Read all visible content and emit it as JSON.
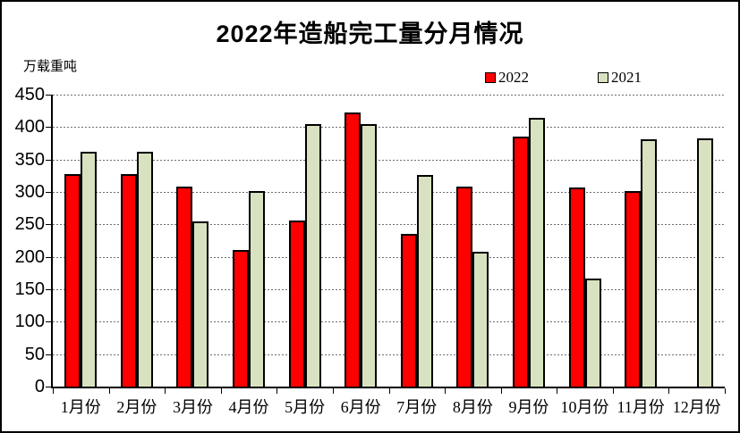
{
  "window": {
    "background": "#ffffff",
    "border_color": "#000000"
  },
  "chart_data": {
    "type": "bar",
    "title": "2022年造船完工量分月情况",
    "ylabel": "万载重吨",
    "xlabel": "",
    "categories": [
      "1月份",
      "2月份",
      "3月份",
      "4月份",
      "5月份",
      "6月份",
      "7月份",
      "8月份",
      "9月份",
      "10月份",
      "11月份",
      "12月份"
    ],
    "series": [
      {
        "name": "2022",
        "color": "#fe0000",
        "values": [
          327,
          327,
          308,
          210,
          256,
          422,
          235,
          308,
          386,
          307,
          302,
          null
        ]
      },
      {
        "name": "2021",
        "color": "#d8e2c0",
        "values": [
          362,
          362,
          255,
          301,
          405,
          405,
          326,
          208,
          414,
          167,
          381,
          382
        ]
      }
    ],
    "ylim": [
      0,
      450
    ],
    "yticks": [
      0,
      50,
      100,
      150,
      200,
      250,
      300,
      350,
      400,
      450
    ],
    "grid": "horizontal-dotted",
    "gridline_color": "#6e6e6e",
    "bar_border_color": "#000000",
    "legend_position": "top-right"
  }
}
